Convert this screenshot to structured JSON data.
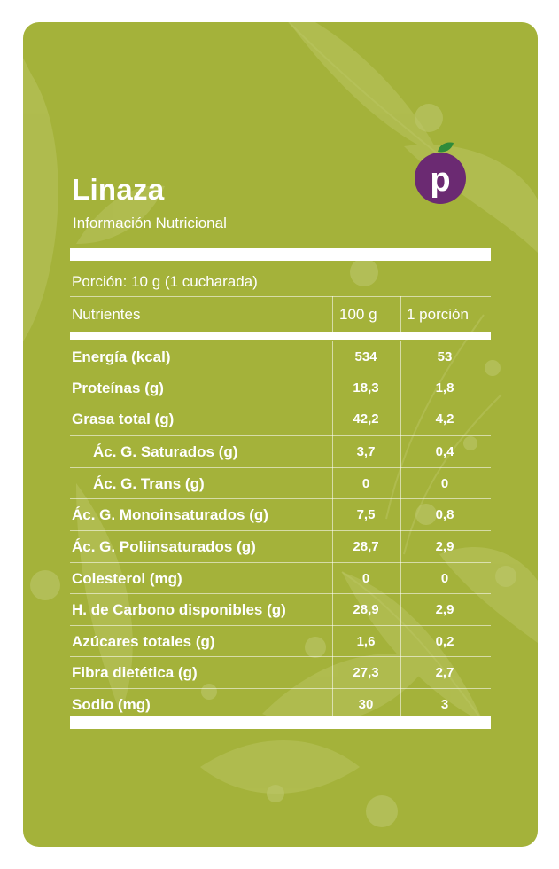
{
  "header": {
    "title": "Linaza",
    "subtitle": "Información Nutricional",
    "logo_letter": "p"
  },
  "portion": "Porción: 10 g (1 cucharada)",
  "columns": {
    "nutrient": "Nutrientes",
    "per_100g": "100 g",
    "per_portion": "1 porción"
  },
  "rows": [
    {
      "name": "Energía (kcal)",
      "v100": "534",
      "vport": "53",
      "indent": false
    },
    {
      "name": "Proteínas (g)",
      "v100": "18,3",
      "vport": "1,8",
      "indent": false
    },
    {
      "name": "Grasa total (g)",
      "v100": "42,2",
      "vport": "4,2",
      "indent": false
    },
    {
      "name": "Ác. G. Saturados (g)",
      "v100": "3,7",
      "vport": "0,4",
      "indent": true
    },
    {
      "name": "Ác. G. Trans (g)",
      "v100": "0",
      "vport": "0",
      "indent": true
    },
    {
      "name": "Ác. G. Monoinsaturados (g)",
      "v100": "7,5",
      "vport": "0,8",
      "indent": false
    },
    {
      "name": "Ác. G. Poliinsaturados (g)",
      "v100": "28,7",
      "vport": "2,9",
      "indent": false
    },
    {
      "name": "Colesterol (mg)",
      "v100": "0",
      "vport": "0",
      "indent": false
    },
    {
      "name": "H. de Carbono disponibles (g)",
      "v100": "28,9",
      "vport": "2,9",
      "indent": false
    },
    {
      "name": "Azúcares totales (g)",
      "v100": "1,6",
      "vport": "0,2",
      "indent": false
    },
    {
      "name": "Fibra dietética (g)",
      "v100": "27,3",
      "vport": "2,7",
      "indent": false
    },
    {
      "name": "Sodio (mg)",
      "v100": "30",
      "vport": "3",
      "indent": false
    }
  ],
  "colors": {
    "card_background": "#a4b23a",
    "text": "#ffffff",
    "logo_purple": "#6b2a72",
    "logo_leaf": "#2e8b3a"
  }
}
